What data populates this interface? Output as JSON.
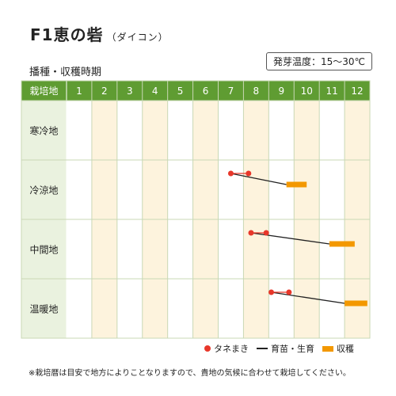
{
  "title": "F1恵の砦",
  "subtitle": "（ダイコン）",
  "section_label": "播種・収穫時期",
  "temperature_note": "発芽温度：15～30℃",
  "footnote": "※栽培暦は目安で地方によりことなりますので、貴地の気候に合わせて栽培してください。",
  "colors": {
    "header_bg": "#5f9c32",
    "label_bg": "#eaf2df",
    "stripe": "#fdf3dd",
    "grid": "#c9d8b5",
    "sow": "#e8372a",
    "grow": "#222222",
    "harvest": "#f39800"
  },
  "chart_data": {
    "type": "table",
    "header_label": "栽培地",
    "months": [
      "1",
      "2",
      "3",
      "4",
      "5",
      "6",
      "7",
      "8",
      "9",
      "10",
      "11",
      "12"
    ],
    "rows": [
      {
        "label": "寒冷地",
        "sowing": [],
        "harvest": []
      },
      {
        "label": "冷涼地",
        "sowing": [
          7.5,
          8.2
        ],
        "harvest": [
          9.7,
          10.5
        ]
      },
      {
        "label": "中間地",
        "sowing": [
          8.3,
          8.9
        ],
        "harvest": [
          11.4,
          12.4
        ]
      },
      {
        "label": "温暖地",
        "sowing": [
          9.1,
          9.8
        ],
        "harvest": [
          12.0,
          12.9
        ]
      }
    ],
    "legend": [
      {
        "key": "sow",
        "label": "タネまき"
      },
      {
        "key": "grow",
        "label": "育苗・生育"
      },
      {
        "key": "harvest",
        "label": "収穫"
      }
    ]
  }
}
